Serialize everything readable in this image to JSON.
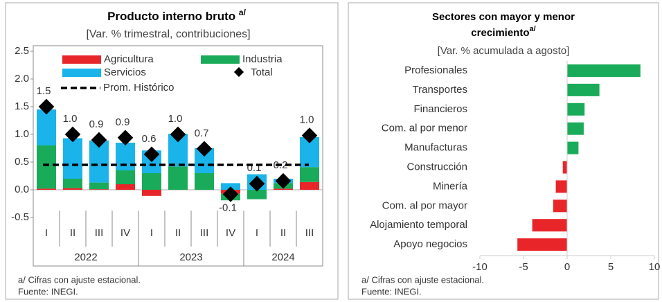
{
  "chart_data": [
    {
      "type": "stacked_bar",
      "title": "Producto interno bruto",
      "title_note": "a/",
      "subtitle": "[Var. % trimestral, contribuciones]",
      "categories": [
        "I",
        "II",
        "III",
        "IV",
        "I",
        "II",
        "III",
        "IV",
        "I",
        "II",
        "III"
      ],
      "x_groups": [
        {
          "label": "2022",
          "count": 4
        },
        {
          "label": "2023",
          "count": 4
        },
        {
          "label": "2024",
          "count": 3
        }
      ],
      "series": [
        {
          "name": "Agricultura",
          "color": "#e8262a",
          "values": [
            0.02,
            0.03,
            0.01,
            0.1,
            -0.11,
            0,
            0,
            -0.07,
            0,
            0.02,
            0.14
          ]
        },
        {
          "name": "Industria",
          "color": "#1aab5a",
          "values": [
            0.78,
            0.17,
            0.12,
            0.25,
            0.3,
            0.42,
            0.3,
            -0.12,
            -0.17,
            0.1,
            0.27
          ]
        },
        {
          "name": "Servicios",
          "color": "#1ab4ea",
          "values": [
            0.65,
            0.73,
            0.76,
            0.5,
            0.41,
            0.59,
            0.45,
            0.12,
            0.28,
            0.08,
            0.54
          ]
        }
      ],
      "total": {
        "name": "Total",
        "color": "#000000",
        "values": [
          1.5,
          1.0,
          0.9,
          0.94,
          0.64,
          1.0,
          0.74,
          -0.08,
          0.11,
          0.16,
          0.98
        ],
        "value_labels": [
          "1.5",
          "1.0",
          "0.9",
          "0.9",
          "0.6",
          "1.0",
          "0.7",
          "-0.1",
          "0.1",
          "0.2",
          "1.0"
        ]
      },
      "reference_line": {
        "name": "Prom. Histórico",
        "value": 0.45,
        "color": "#000000"
      },
      "ylim": [
        -0.6,
        2.6
      ],
      "yticks": [
        -0.5,
        {
          "value": 0,
          "label": "0.0"
        },
        0.5,
        {
          "value": 1,
          "label": "1.0"
        },
        1.5,
        {
          "value": 2,
          "label": "2.0"
        },
        2.5
      ],
      "footnotes": [
        "a/ Cifras con ajuste estacional.",
        "Fuente: INEGI."
      ]
    },
    {
      "type": "hbar",
      "title_lines": [
        "Sectores con mayor y menor",
        "crecimiento"
      ],
      "title_note": "a/",
      "subtitle": "[Var. % acumulada a agosto]",
      "categories": [
        "Profesionales",
        "Transportes",
        "Financieros",
        "Com. al por menor",
        "Manufacturas",
        "Construcción",
        "Minería",
        "Com. al por mayor",
        "Alojamiento temporal",
        "Apoyo negocios"
      ],
      "values": [
        8.4,
        3.7,
        2.0,
        1.9,
        1.3,
        -0.5,
        -1.3,
        -1.6,
        -4.0,
        -5.7
      ],
      "positive_color": "#1aab5a",
      "negative_color": "#e8262a",
      "xlim": [
        -10,
        10
      ],
      "xticks": [
        -10,
        -5,
        0,
        5,
        10
      ],
      "footnotes": [
        "a/ Cifras con ajuste estacional.",
        "Fuente: INEGI."
      ]
    }
  ]
}
